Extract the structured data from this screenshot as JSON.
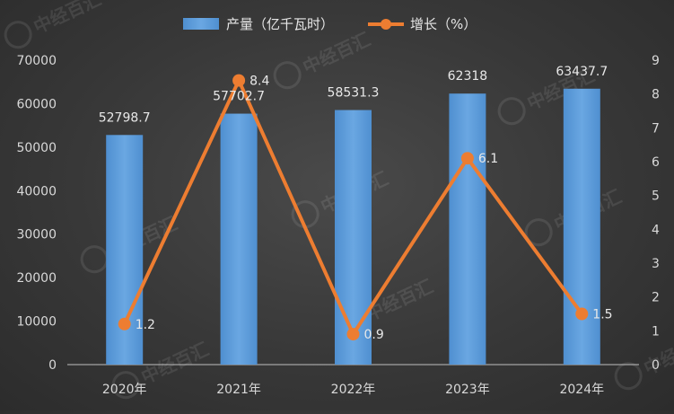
{
  "chart_data": {
    "type": "bar",
    "categories": [
      "2020年",
      "2021年",
      "2022年",
      "2023年",
      "2024年"
    ],
    "series": [
      {
        "name": "产量（亿千瓦时）",
        "type": "bar",
        "axis": "left",
        "values": [
          52798.7,
          57702.7,
          58531.3,
          62318,
          63437.7
        ],
        "labels": [
          "52798.7",
          "57702.7",
          "58531.3",
          "62318",
          "63437.7"
        ],
        "color": "#5b9bd5"
      },
      {
        "name": "增长（%）",
        "type": "line",
        "axis": "right",
        "values": [
          1.2,
          8.4,
          0.9,
          6.1,
          1.5
        ],
        "labels": [
          "1.2",
          "8.4",
          "0.9",
          "6.1",
          "1.5"
        ],
        "color": "#ed7d31"
      }
    ],
    "y_left": {
      "range": [
        0,
        70000
      ],
      "ticks": [
        "0",
        "10000",
        "20000",
        "30000",
        "40000",
        "50000",
        "60000",
        "70000"
      ]
    },
    "y_right": {
      "range": [
        0,
        9
      ],
      "ticks": [
        "0",
        "1",
        "2",
        "3",
        "4",
        "5",
        "6",
        "7",
        "8",
        "9"
      ]
    },
    "grid": false,
    "legend_position": "top"
  },
  "watermark": "中经百汇",
  "colors": {
    "background": "#3a3a3a",
    "bar": "#5b9bd5",
    "line": "#ed7d31",
    "axis": "#bfbfbf",
    "text": "#e6e6e6"
  }
}
